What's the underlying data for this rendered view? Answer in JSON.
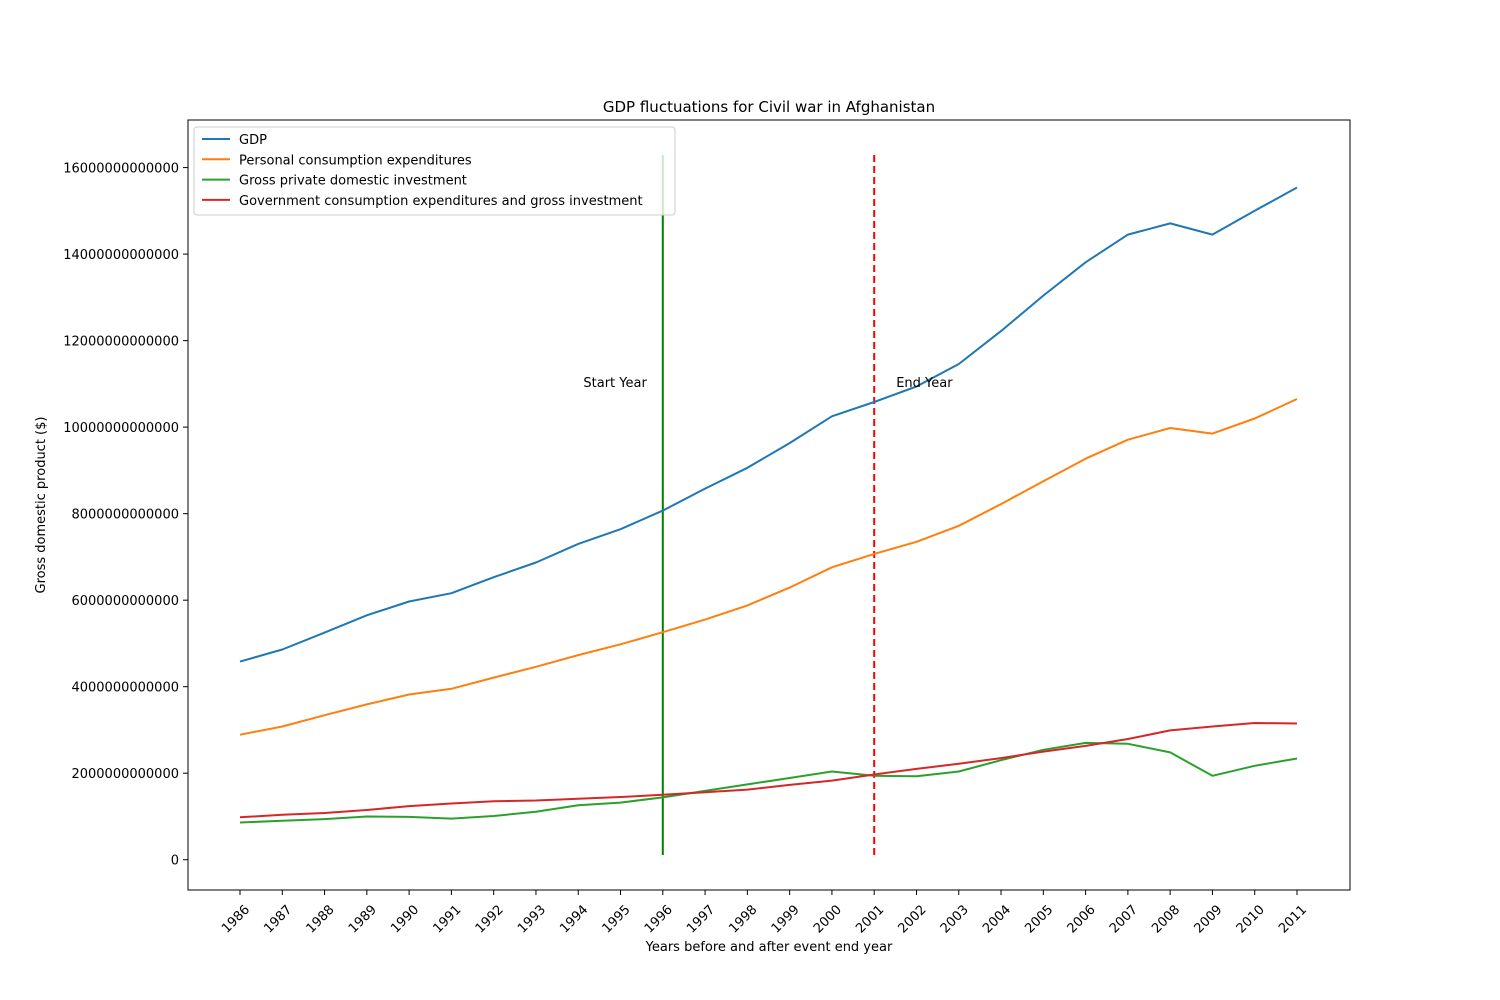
{
  "chart_data": {
    "type": "line",
    "title": "GDP fluctuations for Civil war in Afghanistan",
    "xlabel": "Years before and after event end year",
    "ylabel": "Gross domestic product ($)",
    "categories": [
      "1986",
      "1987",
      "1988",
      "1989",
      "1990",
      "1991",
      "1992",
      "1993",
      "1994",
      "1995",
      "1996",
      "1997",
      "1998",
      "1999",
      "2000",
      "2001",
      "2002",
      "2003",
      "2004",
      "2005",
      "2006",
      "2007",
      "2008",
      "2009",
      "2010",
      "2011"
    ],
    "ylim": [
      -700000000000,
      17100000000000
    ],
    "yticks": [
      0,
      2000000000000,
      4000000000000,
      6000000000000,
      8000000000000,
      10000000000000,
      12000000000000,
      14000000000000,
      16000000000000
    ],
    "ytick_labels": [
      "0",
      "2000000000000",
      "4000000000000",
      "6000000000000",
      "8000000000000",
      "10000000000000",
      "12000000000000",
      "14000000000000",
      "16000000000000"
    ],
    "grid": false,
    "legend_position": "top-left",
    "series": [
      {
        "name": "GDP",
        "color": "#1f77b4",
        "values": [
          4580000000000,
          4860000000000,
          5250000000000,
          5650000000000,
          5970000000000,
          6160000000000,
          6530000000000,
          6870000000000,
          7300000000000,
          7640000000000,
          8070000000000,
          8580000000000,
          9060000000000,
          9630000000000,
          10250000000000,
          10580000000000,
          10940000000000,
          11460000000000,
          12220000000000,
          13040000000000,
          13810000000000,
          14450000000000,
          14710000000000,
          14450000000000,
          15000000000000,
          15540000000000
        ]
      },
      {
        "name": "Personal consumption expenditures",
        "color": "#ff7f0e",
        "values": [
          2890000000000,
          3080000000000,
          3340000000000,
          3590000000000,
          3820000000000,
          3950000000000,
          4210000000000,
          4460000000000,
          4730000000000,
          4980000000000,
          5260000000000,
          5550000000000,
          5880000000000,
          6290000000000,
          6760000000000,
          7070000000000,
          7350000000000,
          7720000000000,
          8220000000000,
          8750000000000,
          9270000000000,
          9710000000000,
          9980000000000,
          9850000000000,
          10200000000000,
          10650000000000
        ]
      },
      {
        "name": "Gross private domestic investment",
        "color": "#2ca02c",
        "values": [
          860000000000,
          900000000000,
          940000000000,
          1000000000000,
          990000000000,
          950000000000,
          1010000000000,
          1110000000000,
          1260000000000,
          1320000000000,
          1440000000000,
          1590000000000,
          1740000000000,
          1890000000000,
          2040000000000,
          1940000000000,
          1930000000000,
          2040000000000,
          2300000000000,
          2540000000000,
          2700000000000,
          2680000000000,
          2480000000000,
          1940000000000,
          2170000000000,
          2340000000000
        ]
      },
      {
        "name": "Government consumption expenditures and gross investment",
        "color": "#d62728",
        "values": [
          980000000000,
          1040000000000,
          1080000000000,
          1150000000000,
          1240000000000,
          1300000000000,
          1350000000000,
          1370000000000,
          1410000000000,
          1450000000000,
          1500000000000,
          1560000000000,
          1620000000000,
          1730000000000,
          1830000000000,
          1970000000000,
          2100000000000,
          2220000000000,
          2350000000000,
          2500000000000,
          2630000000000,
          2790000000000,
          2990000000000,
          3080000000000,
          3160000000000,
          3150000000000
        ]
      }
    ],
    "vlines": [
      {
        "x": "1996",
        "color": "#008000",
        "style": "solid",
        "label": "Start Year"
      },
      {
        "x": "2001",
        "color": "#ff0000",
        "style": "dashed",
        "label": "End Year"
      }
    ]
  }
}
